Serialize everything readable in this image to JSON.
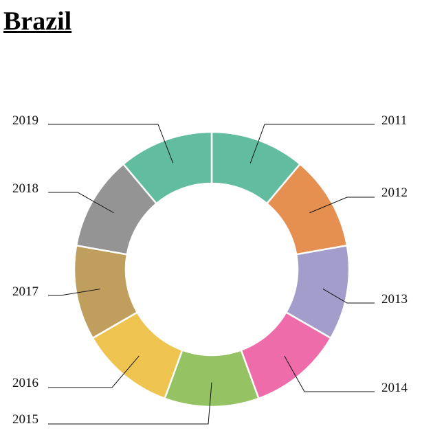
{
  "chart_data": {
    "type": "pie",
    "variant": "donut",
    "title": "Brazil",
    "categories": [
      "2011",
      "2012",
      "2013",
      "2014",
      "2015",
      "2016",
      "2017",
      "2018",
      "2019"
    ],
    "values": [
      1,
      1,
      1,
      1,
      1,
      1,
      1,
      1,
      1
    ],
    "colors": [
      "#61bca0",
      "#e58f51",
      "#a29dcb",
      "#ee6caa",
      "#95c263",
      "#efc34f",
      "#c09e5e",
      "#949494",
      "#61bca0"
    ],
    "legend": "none",
    "labels": "outside with leader lines"
  }
}
